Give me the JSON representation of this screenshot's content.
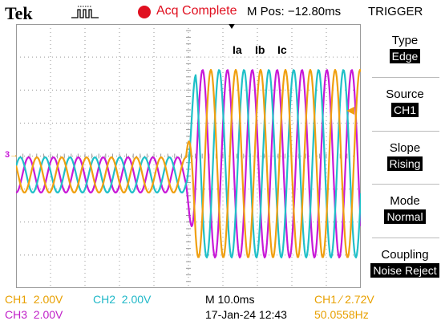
{
  "header": {
    "brand": "Tek",
    "acq_status": "Acq Complete",
    "m_pos": "M Pos: −12.80ms",
    "trigger_title": "TRIGGER"
  },
  "colors": {
    "ch1": "#f0a010",
    "ch2": "#20c0c8",
    "ch3": "#c818d8",
    "grid": "#9a9a9a",
    "run_indicator": "#e01020"
  },
  "icons": {
    "trigger_type": "pulse-icon",
    "acq": "red-dot-icon",
    "trigger_position": "down-arrow-marker",
    "trigger_level": "left-arrow-marker",
    "ch3_ground": "ground-marker"
  },
  "screen": {
    "markers": {
      "ch3_ground": "3",
      "ch3_ground_arrow": "→"
    },
    "trace_labels": [
      "Ia",
      "Ib",
      "Ic"
    ]
  },
  "trigger_menu": {
    "items": [
      {
        "label": "Type",
        "value": "Edge"
      },
      {
        "label": "Source",
        "value": "CH1"
      },
      {
        "label": "Slope",
        "value": "Rising"
      },
      {
        "label": "Mode",
        "value": "Normal"
      },
      {
        "label": "Coupling",
        "value": "Noise Reject"
      }
    ]
  },
  "status": {
    "ch1": "CH1  2.00V",
    "ch2": "CH2  2.00V",
    "ch3": "CH3  2.00V",
    "timebase": "M 10.0ms",
    "datetime": "17-Jan-24 12:43",
    "trigger_info": "CH1 ∕ 2.72V",
    "frequency": "50.0558Hz"
  }
}
